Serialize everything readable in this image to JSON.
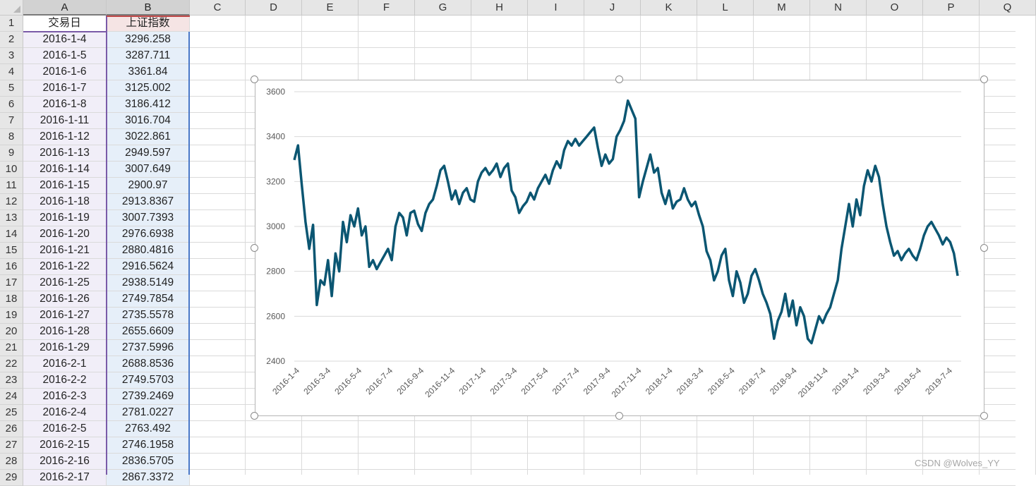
{
  "sheet": {
    "columns": [
      "A",
      "B",
      "C",
      "D",
      "E",
      "F",
      "G",
      "H",
      "I",
      "J",
      "K",
      "L",
      "M",
      "N",
      "O",
      "P",
      "Q"
    ],
    "row_numbers": [
      "1",
      "2",
      "3",
      "4",
      "5",
      "6",
      "7",
      "8",
      "9",
      "10",
      "11",
      "12",
      "13",
      "14",
      "15",
      "16",
      "17",
      "18",
      "19",
      "20",
      "21",
      "22",
      "23",
      "24",
      "25",
      "26",
      "27",
      "28",
      "29"
    ],
    "header": {
      "date": "交易日",
      "index": "上证指数"
    },
    "rows": [
      {
        "date": "2016-1-4",
        "value": "3296.258"
      },
      {
        "date": "2016-1-5",
        "value": "3287.711"
      },
      {
        "date": "2016-1-6",
        "value": "3361.84"
      },
      {
        "date": "2016-1-7",
        "value": "3125.002"
      },
      {
        "date": "2016-1-8",
        "value": "3186.412"
      },
      {
        "date": "2016-1-11",
        "value": "3016.704"
      },
      {
        "date": "2016-1-12",
        "value": "3022.861"
      },
      {
        "date": "2016-1-13",
        "value": "2949.597"
      },
      {
        "date": "2016-1-14",
        "value": "3007.649"
      },
      {
        "date": "2016-1-15",
        "value": "2900.97"
      },
      {
        "date": "2016-1-18",
        "value": "2913.8367"
      },
      {
        "date": "2016-1-19",
        "value": "3007.7393"
      },
      {
        "date": "2016-1-20",
        "value": "2976.6938"
      },
      {
        "date": "2016-1-21",
        "value": "2880.4816"
      },
      {
        "date": "2016-1-22",
        "value": "2916.5624"
      },
      {
        "date": "2016-1-25",
        "value": "2938.5149"
      },
      {
        "date": "2016-1-26",
        "value": "2749.7854"
      },
      {
        "date": "2016-1-27",
        "value": "2735.5578"
      },
      {
        "date": "2016-1-28",
        "value": "2655.6609"
      },
      {
        "date": "2016-1-29",
        "value": "2737.5996"
      },
      {
        "date": "2016-2-1",
        "value": "2688.8536"
      },
      {
        "date": "2016-2-2",
        "value": "2749.5703"
      },
      {
        "date": "2016-2-3",
        "value": "2739.2469"
      },
      {
        "date": "2016-2-4",
        "value": "2781.0227"
      },
      {
        "date": "2016-2-5",
        "value": "2763.492"
      },
      {
        "date": "2016-2-15",
        "value": "2746.1958"
      },
      {
        "date": "2016-2-16",
        "value": "2836.5705"
      },
      {
        "date": "2016-2-17",
        "value": "2867.3372"
      }
    ]
  },
  "watermark": "CSDN @Wolves_YY",
  "chart_data": {
    "type": "line",
    "title": "",
    "xlabel": "",
    "ylabel": "",
    "ylim": [
      2400,
      3600
    ],
    "yticks": [
      "2400",
      "2600",
      "2800",
      "3000",
      "3200",
      "3400",
      "3600"
    ],
    "xticks": [
      "2016-1-4",
      "2016-3-4",
      "2016-5-4",
      "2016-7-4",
      "2016-9-4",
      "2016-11-4",
      "2017-1-4",
      "2017-3-4",
      "2017-5-4",
      "2017-7-4",
      "2017-9-4",
      "2017-11-4",
      "2018-1-4",
      "2018-3-4",
      "2018-5-4",
      "2018-7-4",
      "2018-9-4",
      "2018-11-4",
      "2019-1-4",
      "2019-3-4",
      "2019-5-4",
      "2019-7-4"
    ],
    "line_color": "#0b5672",
    "grid": true,
    "series": [
      {
        "values": [
          3296,
          3361,
          3186,
          3020,
          2900,
          3007,
          2650,
          2760,
          2740,
          2850,
          2690,
          2880,
          2800,
          3020,
          2930,
          3050,
          3000,
          3080,
          2960,
          3000,
          2820,
          2850,
          2810,
          2840,
          2870,
          2900,
          2850,
          3000,
          3060,
          3040,
          2960,
          3060,
          3070,
          3010,
          2980,
          3060,
          3100,
          3120,
          3180,
          3250,
          3270,
          3200,
          3120,
          3160,
          3100,
          3150,
          3170,
          3120,
          3110,
          3200,
          3240,
          3260,
          3230,
          3250,
          3280,
          3220,
          3260,
          3280,
          3160,
          3130,
          3060,
          3090,
          3110,
          3150,
          3120,
          3170,
          3200,
          3230,
          3190,
          3250,
          3290,
          3260,
          3340,
          3380,
          3360,
          3390,
          3360,
          3380,
          3400,
          3420,
          3440,
          3350,
          3270,
          3320,
          3280,
          3300,
          3400,
          3430,
          3470,
          3560,
          3520,
          3480,
          3130,
          3200,
          3260,
          3320,
          3240,
          3260,
          3150,
          3100,
          3160,
          3080,
          3110,
          3120,
          3170,
          3120,
          3090,
          3110,
          3050,
          3000,
          2890,
          2850,
          2760,
          2800,
          2870,
          2900,
          2760,
          2690,
          2800,
          2750,
          2660,
          2700,
          2780,
          2810,
          2760,
          2700,
          2660,
          2610,
          2500,
          2580,
          2620,
          2700,
          2600,
          2670,
          2560,
          2640,
          2600,
          2500,
          2480,
          2540,
          2600,
          2570,
          2610,
          2640,
          2700,
          2760,
          2900,
          3000,
          3100,
          3000,
          3120,
          3050,
          3180,
          3250,
          3200,
          3270,
          3220,
          3100,
          3000,
          2930,
          2870,
          2890,
          2850,
          2880,
          2900,
          2870,
          2850,
          2900,
          2960,
          3000,
          3020,
          2990,
          2960,
          2920,
          2950,
          2930,
          2880,
          2780
        ]
      }
    ]
  }
}
